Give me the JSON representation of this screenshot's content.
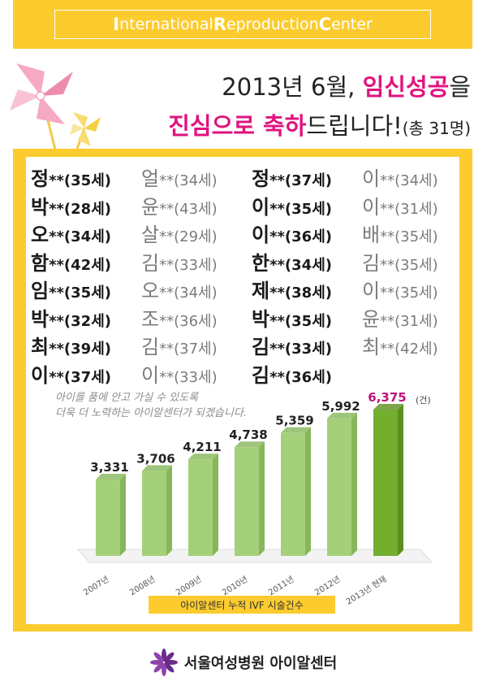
{
  "banner": {
    "title_parts": [
      "I",
      "nternational ",
      "R",
      "eproduction ",
      "C",
      "enter"
    ]
  },
  "headline": {
    "line1_plain": "2013년 6월, ",
    "line1_pink": "임신성공",
    "line1_end": "을",
    "line2_pink1": "진심으로 ",
    "line2_pink2": "축하",
    "line2_plain": "드립니다!",
    "line2_small": "(총 31명)"
  },
  "names": [
    [
      {
        "sur": "정",
        "rest": "**(35세)"
      },
      {
        "sur": "얼",
        "rest": "**(34세)"
      },
      {
        "sur": "정",
        "rest": "**(37세)"
      },
      {
        "sur": "이",
        "rest": "**(34세)"
      }
    ],
    [
      {
        "sur": "박",
        "rest": "**(28세)"
      },
      {
        "sur": "윤",
        "rest": "**(43세)"
      },
      {
        "sur": "이",
        "rest": "**(35세)"
      },
      {
        "sur": "이",
        "rest": "**(31세)"
      }
    ],
    [
      {
        "sur": "오",
        "rest": "**(34세)"
      },
      {
        "sur": "살",
        "rest": "**(29세)"
      },
      {
        "sur": "이",
        "rest": "**(36세)"
      },
      {
        "sur": "배",
        "rest": "**(35세)"
      }
    ],
    [
      {
        "sur": "함",
        "rest": "**(42세)"
      },
      {
        "sur": "김",
        "rest": "**(33세)"
      },
      {
        "sur": "한",
        "rest": "**(34세)"
      },
      {
        "sur": "김",
        "rest": "**(35세)"
      }
    ],
    [
      {
        "sur": "임",
        "rest": "**(35세)"
      },
      {
        "sur": "오",
        "rest": "**(34세)"
      },
      {
        "sur": "제",
        "rest": "**(38세)"
      },
      {
        "sur": "이",
        "rest": "**(35세)"
      }
    ],
    [
      {
        "sur": "박",
        "rest": "**(32세)"
      },
      {
        "sur": "조",
        "rest": "**(36세)"
      },
      {
        "sur": "박",
        "rest": "**(35세)"
      },
      {
        "sur": "윤",
        "rest": "**(31세)"
      }
    ],
    [
      {
        "sur": "최",
        "rest": "**(39세)"
      },
      {
        "sur": "김",
        "rest": "**(37세)"
      },
      {
        "sur": "김",
        "rest": "**(33세)"
      },
      {
        "sur": "최",
        "rest": "**(42세)"
      }
    ],
    [
      {
        "sur": "이",
        "rest": "**(37세)"
      },
      {
        "sur": "이",
        "rest": "**(33세)"
      },
      {
        "sur": "김",
        "rest": "**(36세)"
      }
    ]
  ],
  "message": {
    "line1": "아이를 품에 안고 가실 수 있도록",
    "line2": "더욱 더 노력하는 아이알센터가 되겠습니다."
  },
  "chart_data": {
    "type": "bar",
    "categories": [
      "2007년",
      "2008년",
      "2009년",
      "2010년",
      "2011년",
      "2012년",
      "2013년 현재"
    ],
    "values": [
      3331,
      3706,
      4211,
      4738,
      5359,
      5992,
      6375
    ],
    "value_labels": [
      "3,331",
      "3,706",
      "4,211",
      "4,738",
      "5,359",
      "5,992",
      "6,375"
    ],
    "unit": "(건)",
    "caption": "아이알센터 누적 IVF 시술건수",
    "colors": {
      "bar": "#a5d07a",
      "bar_side": "#86b75a",
      "highlight": "#73ae2c",
      "highlight_side": "#5b8f1f",
      "highlight_label": "#c0127a"
    },
    "grid": false,
    "legend": "none"
  },
  "footer": {
    "hospital": "서울여성병원 아이알센터"
  },
  "colors": {
    "accent": "#fccb2e",
    "pink": "#e0137e"
  }
}
